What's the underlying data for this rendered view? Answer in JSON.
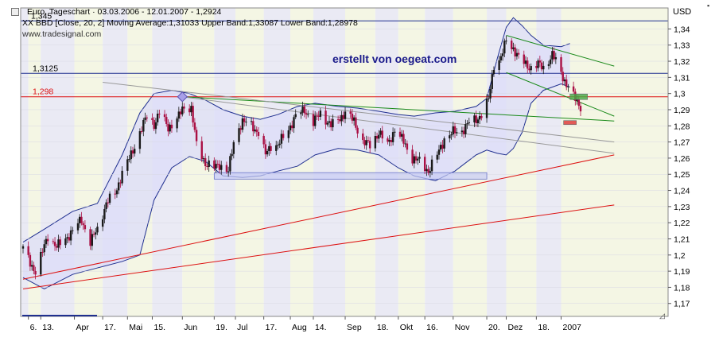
{
  "header": {
    "line1": "Euro, Tageschart · 03.03.2006 - 12.01.2007 - 1,2924",
    "line2": "XX BBD [Close, 20, 2] Moving Average:1,31033 Upper Band:1,33087 Lower Band:1,28978",
    "source": "www.tradesignal.com",
    "currency": "USD"
  },
  "watermark": "erstellt von oegeat.com",
  "colors": {
    "price_up": "#1a1a1a",
    "price_down": "#aa1044",
    "band_line": "#1f2f8f",
    "band_fill": "#dcdcfa",
    "red_line": "#dd1111",
    "navy_line": "#1f2f8f",
    "green_line": "#1a8a1a",
    "gray_line": "#999999",
    "support_box": "#c8ccf5",
    "stripe_a": "#eaeaf4",
    "stripe_b": "#f4f6e4",
    "watermark": "#1a1a8a"
  },
  "chart_data": {
    "type": "candlestick",
    "title": "Euro, Tageschart · 03.03.2006 - 12.01.2007 - 1,2924",
    "y_axis_label": "USD",
    "ylim": [
      1.162,
      1.353
    ],
    "y_ticks": [
      "1,34",
      "1,33",
      "1,32",
      "1,31",
      "1,3",
      "1,29",
      "1,28",
      "1,27",
      "1,26",
      "1,25",
      "1,24",
      "1,23",
      "1,22",
      "1,21",
      "1,2",
      "1,19",
      "1,18",
      "1,17"
    ],
    "y_tick_values": [
      1.34,
      1.33,
      1.32,
      1.31,
      1.3,
      1.29,
      1.28,
      1.27,
      1.26,
      1.25,
      1.24,
      1.23,
      1.22,
      1.21,
      1.2,
      1.19,
      1.18,
      1.17
    ],
    "x_ticks": [
      "6.",
      "13.",
      "Apr",
      "17.",
      "Mai",
      "15.",
      "Jun",
      "19.",
      "Jul",
      "17.",
      "Aug",
      "14.",
      "Sep",
      "18.",
      "Okt",
      "16.",
      "Nov",
      "20.",
      "Dez",
      "18.",
      "2007"
    ],
    "x_tick_dates": [
      "2006-03-06",
      "2006-03-13",
      "2006-04-01",
      "2006-04-17",
      "2006-05-01",
      "2006-05-15",
      "2006-06-01",
      "2006-06-19",
      "2006-07-01",
      "2006-07-17",
      "2006-08-01",
      "2006-08-14",
      "2006-09-01",
      "2006-09-18",
      "2006-10-01",
      "2006-10-16",
      "2006-11-01",
      "2006-11-20",
      "2006-12-01",
      "2006-12-18",
      "2007-01-01"
    ],
    "x_range": [
      "2006-03-03",
      "2007-01-12"
    ],
    "close_points": [
      [
        "2006-03-03",
        1.204
      ],
      [
        "2006-03-07",
        1.195
      ],
      [
        "2006-03-10",
        1.19
      ],
      [
        "2006-03-14",
        1.202
      ],
      [
        "2006-03-17",
        1.212
      ],
      [
        "2006-03-22",
        1.205
      ],
      [
        "2006-03-27",
        1.21
      ],
      [
        "2006-03-31",
        1.215
      ],
      [
        "2006-04-05",
        1.222
      ],
      [
        "2006-04-10",
        1.208
      ],
      [
        "2006-04-14",
        1.216
      ],
      [
        "2006-04-19",
        1.232
      ],
      [
        "2006-04-24",
        1.238
      ],
      [
        "2006-04-28",
        1.251
      ],
      [
        "2006-05-03",
        1.262
      ],
      [
        "2006-05-08",
        1.276
      ],
      [
        "2006-05-12",
        1.286
      ],
      [
        "2006-05-16",
        1.281
      ],
      [
        "2006-05-19",
        1.288
      ],
      [
        "2006-05-24",
        1.279
      ],
      [
        "2006-05-29",
        1.284
      ],
      [
        "2006-06-02",
        1.292
      ],
      [
        "2006-06-06",
        1.291
      ],
      [
        "2006-06-09",
        1.268
      ],
      [
        "2006-06-14",
        1.257
      ],
      [
        "2006-06-19",
        1.254
      ],
      [
        "2006-06-22",
        1.256
      ],
      [
        "2006-06-27",
        1.252
      ],
      [
        "2006-07-01",
        1.275
      ],
      [
        "2006-07-05",
        1.283
      ],
      [
        "2006-07-10",
        1.28
      ],
      [
        "2006-07-14",
        1.276
      ],
      [
        "2006-07-18",
        1.262
      ],
      [
        "2006-07-21",
        1.268
      ],
      [
        "2006-07-25",
        1.268
      ],
      [
        "2006-07-31",
        1.278
      ],
      [
        "2006-08-04",
        1.286
      ],
      [
        "2006-08-09",
        1.29
      ],
      [
        "2006-08-14",
        1.282
      ],
      [
        "2006-08-18",
        1.288
      ],
      [
        "2006-08-24",
        1.28
      ],
      [
        "2006-08-29",
        1.285
      ],
      [
        "2006-09-01",
        1.288
      ],
      [
        "2006-09-06",
        1.283
      ],
      [
        "2006-09-11",
        1.27
      ],
      [
        "2006-09-15",
        1.268
      ],
      [
        "2006-09-20",
        1.276
      ],
      [
        "2006-09-25",
        1.268
      ],
      [
        "2006-09-29",
        1.278
      ],
      [
        "2006-10-04",
        1.27
      ],
      [
        "2006-10-09",
        1.26
      ],
      [
        "2006-10-13",
        1.258
      ],
      [
        "2006-10-18",
        1.252
      ],
      [
        "2006-10-23",
        1.262
      ],
      [
        "2006-10-27",
        1.272
      ],
      [
        "2006-11-01",
        1.276
      ],
      [
        "2006-11-06",
        1.277
      ],
      [
        "2006-11-10",
        1.282
      ],
      [
        "2006-11-14",
        1.284
      ],
      [
        "2006-11-17",
        1.287
      ],
      [
        "2006-11-21",
        1.296
      ],
      [
        "2006-11-24",
        1.318
      ],
      [
        "2006-11-28",
        1.322
      ],
      [
        "2006-12-01",
        1.333
      ],
      [
        "2006-12-05",
        1.328
      ],
      [
        "2006-12-08",
        1.322
      ],
      [
        "2006-12-12",
        1.318
      ],
      [
        "2006-12-15",
        1.316
      ],
      [
        "2006-12-19",
        1.318
      ],
      [
        "2006-12-22",
        1.316
      ],
      [
        "2006-12-27",
        1.324
      ],
      [
        "2006-12-30",
        1.318
      ],
      [
        "2007-01-03",
        1.308
      ],
      [
        "2007-01-08",
        1.298
      ],
      [
        "2007-01-12",
        1.292
      ]
    ],
    "bollinger": {
      "params": "Close, 20, 2",
      "moving_average": 1.31033,
      "upper_band": 1.33087,
      "lower_band": 1.28978,
      "upper": [
        [
          "2006-03-03",
          1.208
        ],
        [
          "2006-03-15",
          1.216
        ],
        [
          "2006-03-31",
          1.227
        ],
        [
          "2006-04-14",
          1.232
        ],
        [
          "2006-04-28",
          1.262
        ],
        [
          "2006-05-08",
          1.288
        ],
        [
          "2006-05-16",
          1.3
        ],
        [
          "2006-05-26",
          1.302
        ],
        [
          "2006-06-05",
          1.3
        ],
        [
          "2006-06-14",
          1.296
        ],
        [
          "2006-06-24",
          1.29
        ],
        [
          "2006-07-05",
          1.286
        ],
        [
          "2006-07-15",
          1.284
        ],
        [
          "2006-07-25",
          1.287
        ],
        [
          "2006-08-05",
          1.292
        ],
        [
          "2006-08-15",
          1.294
        ],
        [
          "2006-08-28",
          1.292
        ],
        [
          "2006-09-08",
          1.291
        ],
        [
          "2006-09-20",
          1.289
        ],
        [
          "2006-10-01",
          1.287
        ],
        [
          "2006-10-10",
          1.286
        ],
        [
          "2006-10-22",
          1.288
        ],
        [
          "2006-11-02",
          1.289
        ],
        [
          "2006-11-14",
          1.292
        ],
        [
          "2006-11-20",
          1.297
        ],
        [
          "2006-11-26",
          1.322
        ],
        [
          "2006-12-01",
          1.341
        ],
        [
          "2006-12-05",
          1.347
        ],
        [
          "2006-12-10",
          1.342
        ],
        [
          "2006-12-15",
          1.336
        ],
        [
          "2006-12-22",
          1.33
        ],
        [
          "2007-01-01",
          1.329
        ],
        [
          "2007-01-06",
          1.331
        ]
      ],
      "lower": [
        [
          "2006-03-03",
          1.186
        ],
        [
          "2006-03-15",
          1.179
        ],
        [
          "2006-03-31",
          1.188
        ],
        [
          "2006-04-14",
          1.192
        ],
        [
          "2006-04-28",
          1.196
        ],
        [
          "2006-05-08",
          1.2
        ],
        [
          "2006-05-16",
          1.234
        ],
        [
          "2006-05-26",
          1.254
        ],
        [
          "2006-06-05",
          1.261
        ],
        [
          "2006-06-14",
          1.258
        ],
        [
          "2006-06-24",
          1.249
        ],
        [
          "2006-07-05",
          1.248
        ],
        [
          "2006-07-15",
          1.249
        ],
        [
          "2006-07-25",
          1.252
        ],
        [
          "2006-08-05",
          1.255
        ],
        [
          "2006-08-15",
          1.262
        ],
        [
          "2006-08-28",
          1.266
        ],
        [
          "2006-09-08",
          1.265
        ],
        [
          "2006-09-20",
          1.262
        ],
        [
          "2006-10-01",
          1.254
        ],
        [
          "2006-10-10",
          1.249
        ],
        [
          "2006-10-22",
          1.246
        ],
        [
          "2006-11-02",
          1.252
        ],
        [
          "2006-11-14",
          1.262
        ],
        [
          "2006-11-20",
          1.265
        ],
        [
          "2006-11-26",
          1.263
        ],
        [
          "2006-12-01",
          1.262
        ],
        [
          "2006-12-05",
          1.266
        ],
        [
          "2006-12-10",
          1.276
        ],
        [
          "2006-12-15",
          1.294
        ],
        [
          "2006-12-22",
          1.302
        ],
        [
          "2007-01-01",
          1.306
        ],
        [
          "2007-01-06",
          1.304
        ]
      ]
    },
    "horizontal_lines": [
      {
        "label": "1,345",
        "value": 1.345,
        "color": "#1f2f8f"
      },
      {
        "label": "1,3125",
        "value": 1.3125,
        "color": "#1f2f8f"
      },
      {
        "label": "1,298",
        "value": 1.298,
        "color": "#dd1111"
      }
    ],
    "trend_lines": [
      {
        "color": "#dd1111",
        "from": [
          "2006-03-03",
          1.185
        ],
        "to": [
          "2007-01-31",
          1.262
        ]
      },
      {
        "color": "#dd1111",
        "from": [
          "2006-03-03",
          1.179
        ],
        "to": [
          "2007-01-31",
          1.231
        ]
      },
      {
        "color": "#1a8a1a",
        "from": [
          "2006-06-01",
          1.298
        ],
        "to": [
          "2007-01-31",
          1.283
        ]
      },
      {
        "color": "#1a8a1a",
        "from": [
          "2006-12-01",
          1.336
        ],
        "to": [
          "2007-01-31",
          1.317
        ]
      },
      {
        "color": "#1a8a1a",
        "from": [
          "2006-12-01",
          1.313
        ],
        "to": [
          "2007-01-31",
          1.286
        ]
      },
      {
        "color": "#999999",
        "from": [
          "2006-04-17",
          1.307
        ],
        "to": [
          "2007-01-31",
          1.27
        ]
      },
      {
        "color": "#999999",
        "from": [
          "2006-06-01",
          1.298
        ],
        "to": [
          "2007-01-31",
          1.263
        ]
      }
    ],
    "support_zone": {
      "from": "2006-06-19",
      "to": "2006-11-20",
      "low": 1.247,
      "high": 1.251
    },
    "markers": [
      {
        "type": "diamond",
        "date": "2006-06-01",
        "value": 1.298
      },
      {
        "type": "target-box",
        "date": "2007-01-06",
        "value": 1.298,
        "color": "#44aa44"
      },
      {
        "type": "target-box",
        "date": "2007-01-06",
        "value": 1.282,
        "color": "#dd3333"
      }
    ]
  }
}
